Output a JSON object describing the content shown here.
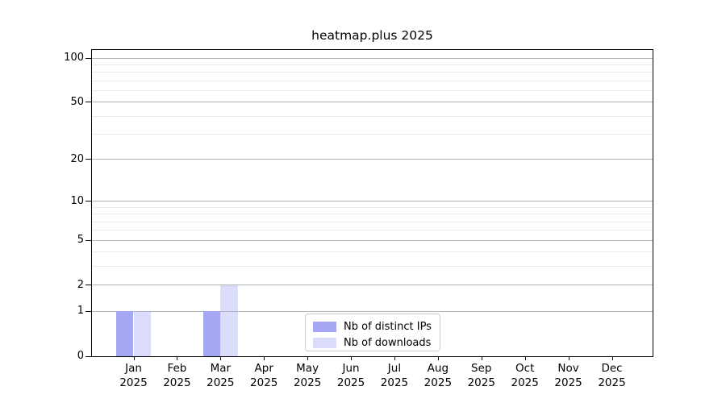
{
  "title": "heatmap.plus 2025",
  "chart_data": {
    "type": "bar",
    "title": "heatmap.plus 2025",
    "categories": [
      "Jan",
      "Feb",
      "Mar",
      "Apr",
      "May",
      "Jun",
      "Jul",
      "Aug",
      "Sep",
      "Oct",
      "Nov",
      "Dec"
    ],
    "category_year": "2025",
    "series": [
      {
        "name": "Nb of distinct IPs",
        "color": "#a6a7f4",
        "values": [
          1,
          0,
          1,
          0,
          0,
          0,
          0,
          0,
          0,
          0,
          0,
          0
        ]
      },
      {
        "name": "Nb of downloads",
        "color": "rgba(176,179,245,0.45)",
        "values": [
          1,
          0,
          2,
          0,
          0,
          0,
          0,
          0,
          0,
          0,
          0,
          0
        ]
      }
    ],
    "y_ticks": [
      0,
      1,
      2,
      5,
      10,
      20,
      50,
      100
    ],
    "y_minor_ticks": [
      3,
      4,
      6,
      7,
      8,
      9,
      30,
      40,
      60,
      70,
      80,
      90
    ],
    "y_scale": "log1p",
    "ylim": [
      0,
      100
    ],
    "xlabel": "",
    "ylabel": "",
    "grid": true,
    "legend_position": "lower center"
  },
  "legend": {
    "items": [
      {
        "label": "Nb of distinct IPs",
        "color": "#a6a7f4"
      },
      {
        "label": "Nb of downloads",
        "color": "#dadcfa"
      }
    ]
  }
}
